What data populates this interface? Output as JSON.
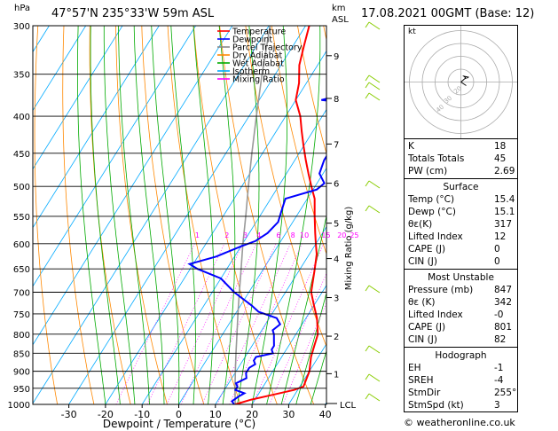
{
  "header": {
    "location": "47°57'N  235°33'W  59m  ASL",
    "datetime": "17.08.2021  00GMT  (Base: 12)",
    "hpa_label": "hPa",
    "km_label": "km",
    "asl_label": "ASL"
  },
  "legend": [
    "Temperature",
    "Dewpoint",
    "Parcel Trajectory",
    "Dry Adiabat",
    "Wet Adiabat",
    "Isotherm",
    "Mixing Ratio"
  ],
  "legend_colors": [
    "#ff0000",
    "#0000ff",
    "#888888",
    "#ff8800",
    "#00aa00",
    "#00aaff",
    "#ff00ff"
  ],
  "xaxis_label": "Dewpoint / Temperature (°C)",
  "mix_axis_label": "Mixing Ratio (g/kg)",
  "lcl_label": "LCL",
  "hodo_kt": "kt",
  "hodo_ring_labels": [
    "40",
    "30",
    "20"
  ],
  "footer": "© weatheronline.co.uk",
  "chart_data": {
    "type": "line",
    "title": "",
    "xlabel": "Dewpoint / Temperature (°C)",
    "ylabel": "hPa",
    "xlim": [
      -35,
      40
    ],
    "ylim": [
      1000,
      300
    ],
    "y_scale": "log",
    "pressure_ticks": [
      300,
      350,
      400,
      450,
      500,
      550,
      600,
      650,
      700,
      750,
      800,
      850,
      900,
      950,
      1000
    ],
    "temp_ticks": [
      -30,
      -20,
      -10,
      0,
      10,
      20,
      30,
      40
    ],
    "km_ticks": [
      {
        "km": "1",
        "p": 907
      },
      {
        "km": "2",
        "p": 805
      },
      {
        "km": "3",
        "p": 712
      },
      {
        "km": "4",
        "p": 629
      },
      {
        "km": "5",
        "p": 562
      },
      {
        "km": "6",
        "p": 495
      },
      {
        "km": "7",
        "p": 437
      },
      {
        "km": "8",
        "p": 378
      },
      {
        "km": "9",
        "p": 330
      }
    ],
    "mixing_ratio_labels": [
      "1",
      "2",
      "3",
      "4",
      "6",
      "8",
      "10",
      "15",
      "20",
      "25"
    ],
    "series": [
      {
        "name": "Temperature",
        "color": "#ff0000",
        "points": [
          [
            1000,
            15.4
          ],
          [
            985,
            19
          ],
          [
            970,
            24
          ],
          [
            955,
            29
          ],
          [
            945,
            31
          ],
          [
            900,
            30
          ],
          [
            860,
            28
          ],
          [
            830,
            27
          ],
          [
            800,
            26
          ],
          [
            760,
            23
          ],
          [
            730,
            20
          ],
          [
            700,
            17
          ],
          [
            650,
            14
          ],
          [
            620,
            12
          ],
          [
            600,
            10
          ],
          [
            580,
            8
          ],
          [
            550,
            5
          ],
          [
            520,
            2
          ],
          [
            500,
            -1
          ],
          [
            480,
            -4
          ],
          [
            460,
            -7
          ],
          [
            440,
            -10
          ],
          [
            420,
            -13
          ],
          [
            400,
            -16
          ],
          [
            380,
            -20
          ],
          [
            360,
            -22
          ],
          [
            340,
            -25
          ],
          [
            320,
            -27
          ],
          [
            300,
            -29
          ]
        ]
      },
      {
        "name": "Dewpoint",
        "color": "#0000ff",
        "points": [
          [
            1000,
            15.1
          ],
          [
            990,
            14
          ],
          [
            975,
            15
          ],
          [
            965,
            16
          ],
          [
            955,
            13
          ],
          [
            945,
            13
          ],
          [
            935,
            12
          ],
          [
            920,
            14
          ],
          [
            905,
            13
          ],
          [
            890,
            13
          ],
          [
            880,
            14
          ],
          [
            870,
            13
          ],
          [
            860,
            13
          ],
          [
            850,
            17
          ],
          [
            840,
            16
          ],
          [
            830,
            16
          ],
          [
            815,
            15
          ],
          [
            800,
            14
          ],
          [
            790,
            13
          ],
          [
            775,
            14
          ],
          [
            760,
            12
          ],
          [
            745,
            6
          ],
          [
            730,
            3
          ],
          [
            700,
            -4
          ],
          [
            670,
            -10
          ],
          [
            650,
            -18
          ],
          [
            640,
            -21
          ],
          [
            625,
            -15
          ],
          [
            605,
            -10
          ],
          [
            595,
            -7
          ],
          [
            580,
            -5
          ],
          [
            560,
            -4
          ],
          [
            540,
            -5
          ],
          [
            520,
            -6
          ],
          [
            505,
            1
          ],
          [
            495,
            2
          ],
          [
            480,
            -1
          ],
          [
            460,
            -2
          ],
          [
            445,
            -2
          ],
          [
            430,
            -2
          ],
          [
            420,
            -5
          ],
          [
            410,
            -2
          ],
          [
            390,
            0
          ],
          [
            385,
            0
          ],
          [
            380,
            -13
          ],
          [
            370,
            -6
          ],
          [
            355,
            -5
          ],
          [
            340,
            -5
          ],
          [
            325,
            -7
          ],
          [
            315,
            -13
          ],
          [
            310,
            -12
          ],
          [
            303,
            -17
          ],
          [
            300,
            -17
          ]
        ]
      },
      {
        "name": "Parcel Trajectory",
        "color": "#999999",
        "points": [
          [
            1000,
            15.4
          ],
          [
            950,
            12.6
          ],
          [
            900,
            9.8
          ],
          [
            850,
            6.9
          ],
          [
            800,
            3.9
          ],
          [
            750,
            0.7
          ],
          [
            700,
            -2.6
          ],
          [
            650,
            -6.1
          ],
          [
            600,
            -9.9
          ],
          [
            550,
            -13.8
          ],
          [
            500,
            -18.2
          ],
          [
            450,
            -22.9
          ],
          [
            400,
            -28
          ],
          [
            350,
            -33.6
          ],
          [
            300,
            -39.7
          ]
        ]
      }
    ]
  },
  "hodograph": {
    "u": [
      0,
      1.1,
      1.8,
      2.6,
      1.5,
      3.8,
      3.2
    ],
    "v": [
      0,
      0.9,
      1.6,
      2.0,
      3.0,
      2.5,
      1.9
    ]
  },
  "indices": {
    "rows": [
      [
        "K",
        "18"
      ],
      [
        "Totals Totals",
        "45"
      ],
      [
        "PW (cm)",
        "2.69"
      ]
    ],
    "surface_title": "Surface",
    "surface": [
      [
        "Temp (°C)",
        "15.4"
      ],
      [
        "Dewp (°C)",
        "15.1"
      ],
      [
        "θε(K)",
        "317"
      ],
      [
        "Lifted Index",
        "12"
      ],
      [
        "CAPE (J)",
        "0"
      ],
      [
        "CIN (J)",
        "0"
      ]
    ],
    "mu_title": "Most Unstable",
    "mu": [
      [
        "Pressure (mb)",
        "847"
      ],
      [
        "θε (K)",
        "342"
      ],
      [
        "Lifted Index",
        "-0"
      ],
      [
        "CAPE (J)",
        "801"
      ],
      [
        "CIN (J)",
        "82"
      ]
    ],
    "hodo_title": "Hodograph",
    "hodo": [
      [
        "EH",
        "-1"
      ],
      [
        "SREH",
        "-4"
      ],
      [
        "StmDir",
        "255°"
      ],
      [
        "StmSpd (kt)",
        "3"
      ]
    ]
  }
}
